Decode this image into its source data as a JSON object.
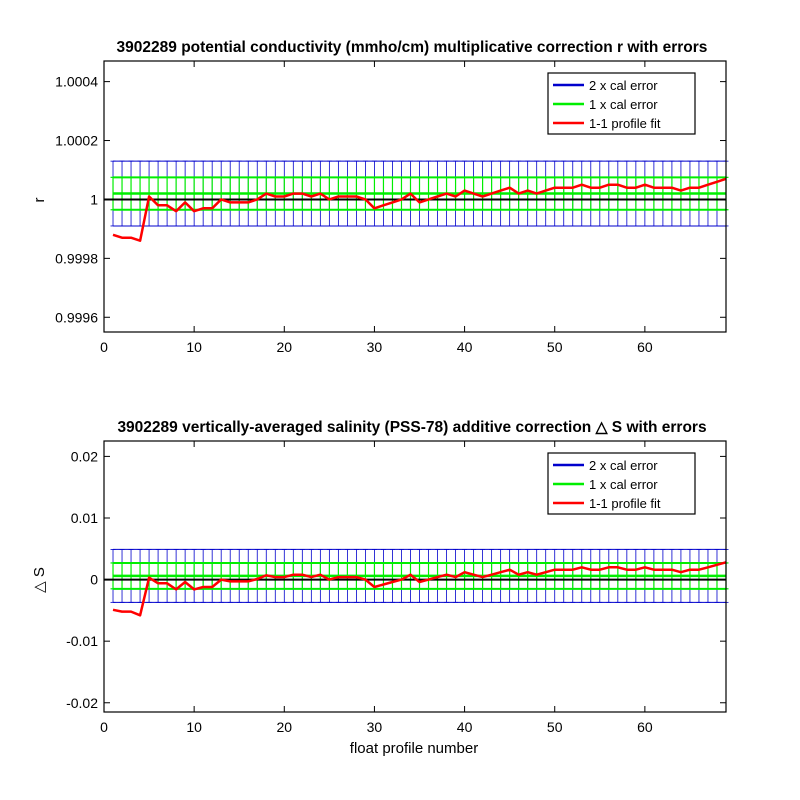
{
  "colors": {
    "cal2": "#0000cc",
    "cal1": "#00ee00",
    "fit": "#ff0000",
    "zero": "#000000"
  },
  "chart_data": [
    {
      "type": "line",
      "title": "3902289 potential conductivity (mmho/cm) multiplicative correction r with errors",
      "xlabel": "",
      "ylabel": "r",
      "xlim": [
        0,
        69
      ],
      "ylim": [
        0.99955,
        1.00047
      ],
      "xticks": [
        0,
        10,
        20,
        30,
        40,
        50,
        60
      ],
      "yticks": [
        0.9996,
        0.9998,
        1,
        1.0002,
        1.0004
      ],
      "ytick_labels": [
        "0.9996",
        "0.9998",
        "1",
        "1.0002",
        "1.0004"
      ],
      "legend": {
        "position": "top-right",
        "entries": [
          "2 x cal error",
          "1 x cal error",
          "1-1 profile fit"
        ]
      },
      "reference_y": 1.0,
      "x": [
        1,
        2,
        3,
        4,
        5,
        6,
        7,
        8,
        9,
        10,
        11,
        12,
        13,
        14,
        15,
        16,
        17,
        18,
        19,
        20,
        21,
        22,
        23,
        24,
        25,
        26,
        27,
        28,
        29,
        30,
        31,
        32,
        33,
        34,
        35,
        36,
        37,
        38,
        39,
        40,
        41,
        42,
        43,
        44,
        45,
        46,
        47,
        48,
        49,
        50,
        51,
        52,
        53,
        54,
        55,
        56,
        57,
        58,
        59,
        60,
        61,
        62,
        63,
        64,
        65,
        66,
        67,
        68,
        69
      ],
      "series": [
        {
          "name": "1-1 profile fit",
          "values": [
            0.99988,
            0.99987,
            0.99987,
            0.99986,
            1.00001,
            0.99998,
            0.99998,
            0.99996,
            0.99999,
            0.99996,
            0.99997,
            0.99997,
            1.0,
            0.99999,
            0.99999,
            0.99999,
            1.0,
            1.00002,
            1.00001,
            1.00001,
            1.00002,
            1.00002,
            1.00001,
            1.00002,
            1.0,
            1.00001,
            1.00001,
            1.00001,
            1.0,
            0.99997,
            0.99998,
            0.99999,
            1.0,
            1.00002,
            0.99999,
            1.0,
            1.00001,
            1.00002,
            1.00001,
            1.00003,
            1.00002,
            1.00001,
            1.00002,
            1.00003,
            1.00004,
            1.00002,
            1.00003,
            1.00002,
            1.00003,
            1.00004,
            1.00004,
            1.00004,
            1.00005,
            1.00004,
            1.00004,
            1.00005,
            1.00005,
            1.00004,
            1.00004,
            1.00005,
            1.00004,
            1.00004,
            1.00004,
            1.00003,
            1.00004,
            1.00004,
            1.00005,
            1.00006,
            1.00007
          ]
        }
      ],
      "cal_center": 1.00002,
      "cal_error_1x": 5.5e-05,
      "cal_error_2x": 0.00011
    },
    {
      "type": "line",
      "title": "3902289 vertically-averaged salinity (PSS-78) additive correction △ S with errors",
      "xlabel": "float profile number",
      "ylabel": "△ S",
      "xlim": [
        0,
        69
      ],
      "ylim": [
        -0.0215,
        0.0225
      ],
      "xticks": [
        0,
        10,
        20,
        30,
        40,
        50,
        60
      ],
      "yticks": [
        -0.02,
        -0.01,
        0,
        0.01,
        0.02
      ],
      "ytick_labels": [
        "-0.02",
        "-0.01",
        "0",
        "0.01",
        "0.02"
      ],
      "legend": {
        "position": "top-right",
        "entries": [
          "2 x cal error",
          "1 x cal error",
          "1-1 profile fit"
        ]
      },
      "reference_y": 0.0,
      "x": [
        1,
        2,
        3,
        4,
        5,
        6,
        7,
        8,
        9,
        10,
        11,
        12,
        13,
        14,
        15,
        16,
        17,
        18,
        19,
        20,
        21,
        22,
        23,
        24,
        25,
        26,
        27,
        28,
        29,
        30,
        31,
        32,
        33,
        34,
        35,
        36,
        37,
        38,
        39,
        40,
        41,
        42,
        43,
        44,
        45,
        46,
        47,
        48,
        49,
        50,
        51,
        52,
        53,
        54,
        55,
        56,
        57,
        58,
        59,
        60,
        61,
        62,
        63,
        64,
        65,
        66,
        67,
        68,
        69
      ],
      "series": [
        {
          "name": "1-1 profile fit",
          "values": [
            -0.0049,
            -0.0052,
            -0.0052,
            -0.0058,
            0.0003,
            -0.0006,
            -0.0006,
            -0.0016,
            -0.0004,
            -0.0016,
            -0.0012,
            -0.0012,
            0.0,
            -0.0003,
            -0.0003,
            -0.0003,
            0.0001,
            0.0007,
            0.0004,
            0.0004,
            0.0008,
            0.0008,
            0.0004,
            0.0008,
            0.0,
            0.0004,
            0.0004,
            0.0004,
            0.0,
            -0.0012,
            -0.0008,
            -0.0004,
            0.0,
            0.0008,
            -0.0004,
            0.0,
            0.0004,
            0.0008,
            0.0004,
            0.0012,
            0.0008,
            0.0004,
            0.0008,
            0.0012,
            0.0016,
            0.0008,
            0.0012,
            0.0008,
            0.0012,
            0.0016,
            0.0016,
            0.0016,
            0.002,
            0.0016,
            0.0016,
            0.002,
            0.002,
            0.0016,
            0.0016,
            0.002,
            0.0016,
            0.0016,
            0.0016,
            0.0012,
            0.0016,
            0.0016,
            0.002,
            0.0024,
            0.0028
          ]
        }
      ],
      "cal_center": 0.0006,
      "cal_error_1x": 0.0021,
      "cal_error_2x": 0.0043
    }
  ]
}
